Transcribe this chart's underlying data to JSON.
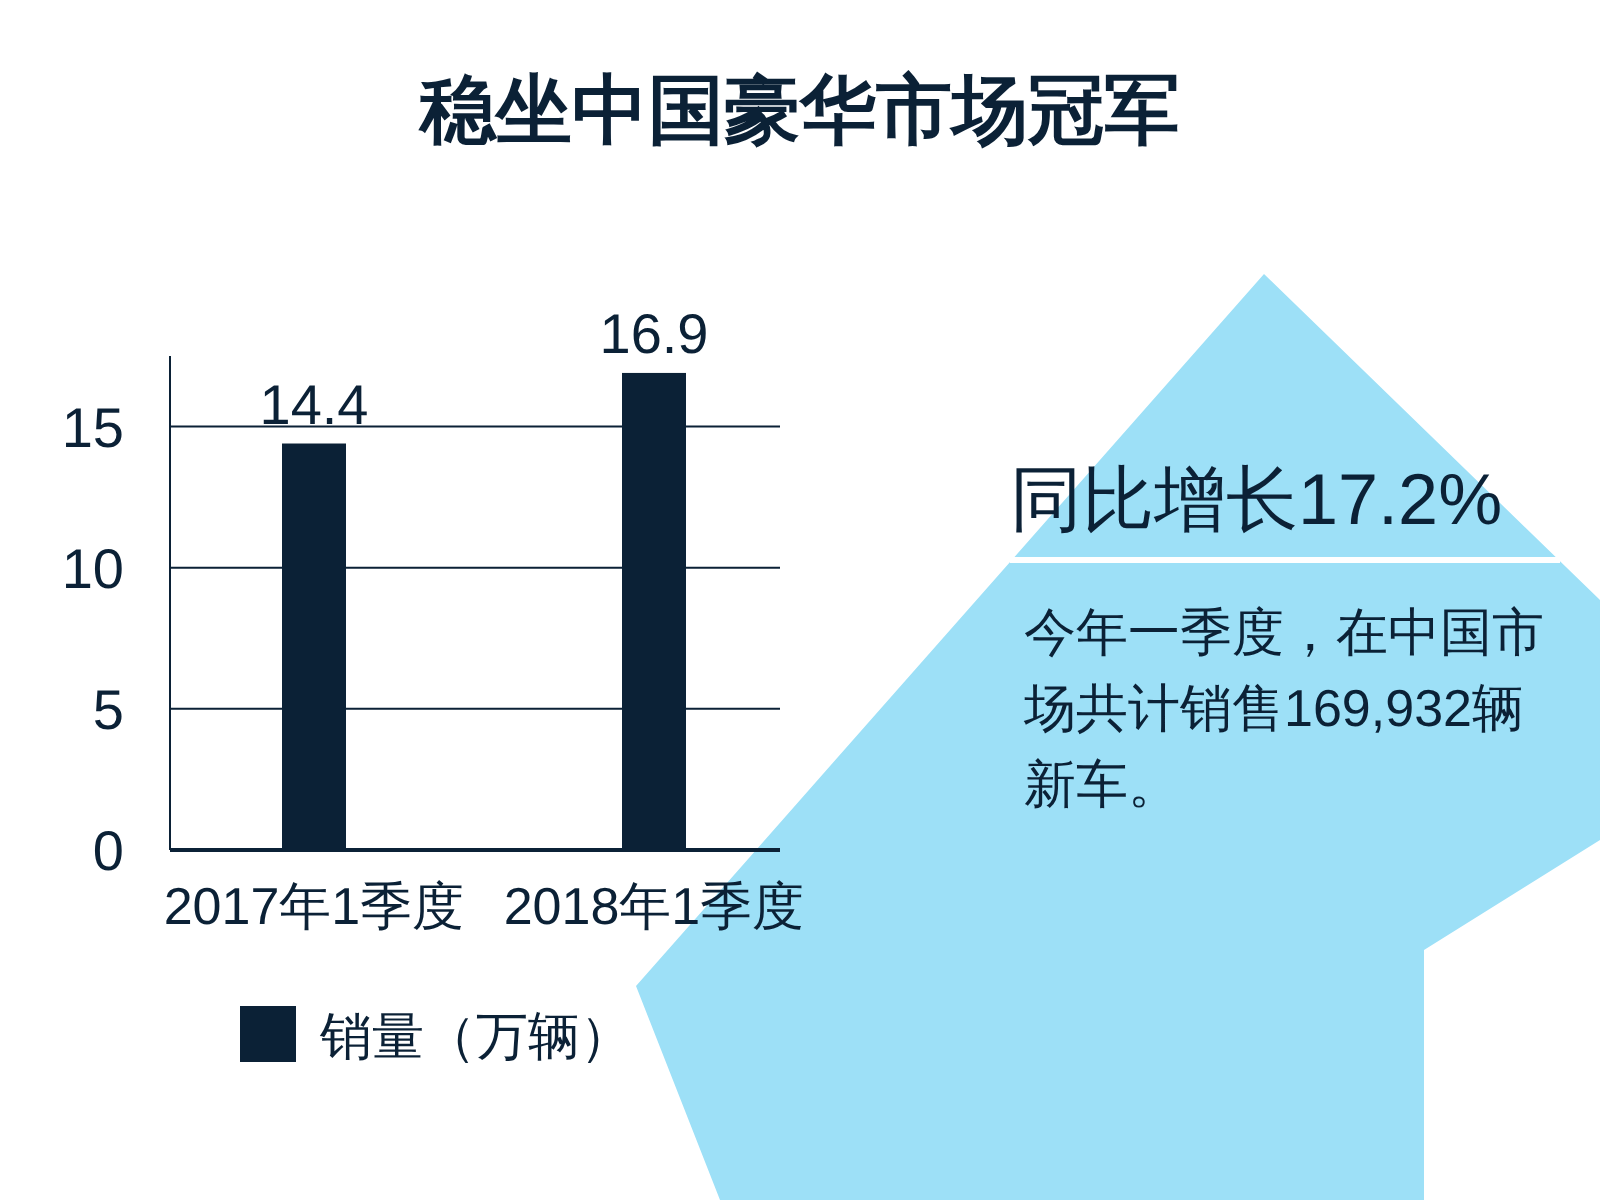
{
  "chart_data": {
    "type": "bar",
    "title": "稳坐中国豪华市场冠军",
    "categories": [
      "2017年1季度",
      "2018年1季度"
    ],
    "series": [
      {
        "name": "销量（万辆）",
        "color": "#0b2136",
        "values": [
          14.4,
          16.9
        ]
      }
    ],
    "ylim": [
      0,
      17.5
    ],
    "yticks": [
      0,
      5,
      10,
      15
    ],
    "grid": "y",
    "data_labels": true,
    "legend": "bottom",
    "annotations": [
      "同比增长17.2%",
      "今年一季度，在中国市场共计销售169,932辆新车。"
    ]
  }
}
